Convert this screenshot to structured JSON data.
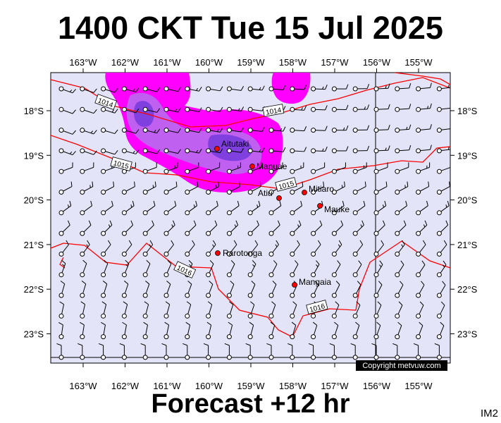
{
  "title": "1400 CKT Tue 15 Jul 2025",
  "footer": "Forecast +12 hr",
  "image_code": "IM2",
  "copyright": "Copyright metvuw.com",
  "longitude_labels": [
    "163°W",
    "162°W",
    "161°W",
    "160°W",
    "159°W",
    "158°W",
    "157°W",
    "156°W",
    "155°W"
  ],
  "latitude_labels": [
    "18°S",
    "19°S",
    "20°S",
    "21°S",
    "22°S",
    "23°S"
  ],
  "isobar_labels": [
    "1014",
    "1014",
    "1015",
    "1015",
    "1016",
    "1016"
  ],
  "places": [
    {
      "name": "Aitutaki"
    },
    {
      "name": "Manuae"
    },
    {
      "name": "Atiu"
    },
    {
      "name": "Mitiaro"
    },
    {
      "name": "Mauke"
    },
    {
      "name": "Rarotonga"
    },
    {
      "name": "Mangaia"
    }
  ],
  "colors": {
    "ocean": "#e4e4f8",
    "rain_light": "#ff00ff",
    "rain_medium": "#c060f0",
    "rain_heavy": "#8040e0",
    "isobar": "#ff0000",
    "place_marker": "#ff0000"
  }
}
